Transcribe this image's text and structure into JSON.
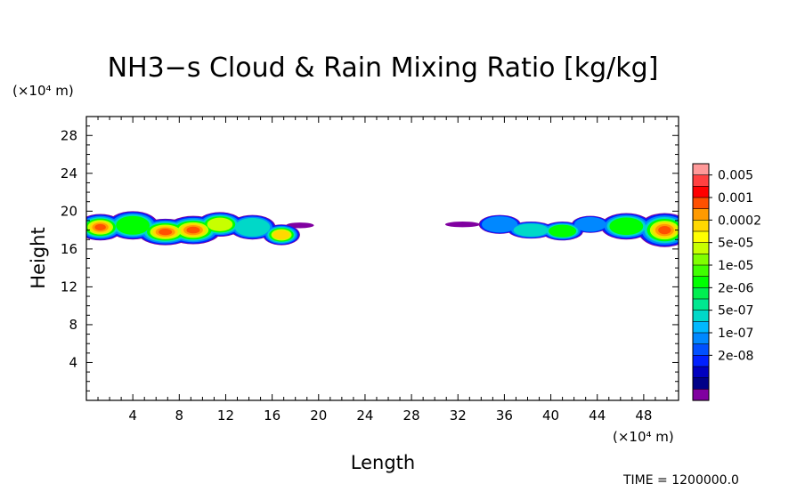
{
  "chart_data": {
    "type": "heatmap",
    "title": "NH3−s Cloud & Rain Mixing Ratio [kg/kg]",
    "xlabel": "Length",
    "ylabel": "Height",
    "x_unit": "(×10⁴ m)",
    "y_unit": "(×10⁴ m)",
    "xlim": [
      0,
      51
    ],
    "ylim": [
      0,
      30
    ],
    "x_ticks": [
      4,
      8,
      12,
      16,
      20,
      24,
      28,
      32,
      36,
      40,
      44,
      48
    ],
    "y_ticks": [
      4,
      8,
      12,
      16,
      20,
      24,
      28
    ],
    "colorbar": {
      "labels": [
        "0.005",
        "0.001",
        "0.0002",
        "5e-05",
        "1e-05",
        "2e-06",
        "5e-07",
        "1e-07",
        "2e-08"
      ],
      "colors": [
        "#ff9999",
        "#ff4040",
        "#ff0000",
        "#ff5000",
        "#ff9a00",
        "#ffd800",
        "#ffff00",
        "#c8ff00",
        "#80ff00",
        "#40ff00",
        "#00ff00",
        "#00ee50",
        "#00e890",
        "#00d8c8",
        "#00b8ff",
        "#0088ff",
        "#0050ff",
        "#0020ff",
        "#0000c0",
        "#000088",
        "#8000a0"
      ]
    },
    "cloud_regions": [
      {
        "name": "left cloud deck",
        "x_range": [
          0,
          19
        ],
        "height_range": [
          16.5,
          20
        ],
        "core_height": 18,
        "peak_value": "0.0002",
        "edge_value": "2e-08"
      },
      {
        "name": "right cloud deck",
        "x_range": [
          31,
          51
        ],
        "height_range": [
          16.5,
          20
        ],
        "core_height": 18,
        "peak_value": "0.0002",
        "edge_value": "2e-08"
      }
    ]
  },
  "time_label": "TIME = 1200000.0"
}
